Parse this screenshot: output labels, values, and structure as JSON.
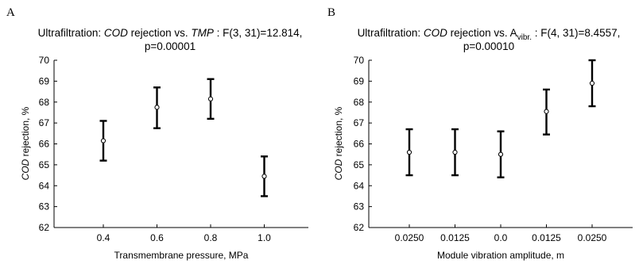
{
  "chart_data": [
    {
      "type": "scatter",
      "panel": "A",
      "title": {
        "prefix": "Ultrafiltration: ",
        "y_var": "COD",
        "middle": " rejection vs. ",
        "x_var": "TMP",
        "x_sub": "",
        "suffix": " : F(3, 31)=12.814,",
        "line2": "p=0.00001"
      },
      "xlabel": "Transmembrane pressure, MPa",
      "ylabel_var": "COD",
      "ylabel_rest": " rejection, %",
      "categories": [
        "0.4",
        "0.6",
        "0.8",
        "1.0"
      ],
      "ylim": [
        62,
        70
      ],
      "yticks": [
        "62",
        "63",
        "64",
        "65",
        "66",
        "67",
        "68",
        "69",
        "70"
      ],
      "grid": false,
      "series": [
        {
          "values": [
            66.15,
            67.75,
            68.15,
            64.45
          ],
          "lower": [
            65.2,
            66.75,
            67.2,
            63.5
          ],
          "upper": [
            67.1,
            68.7,
            69.1,
            65.4
          ]
        }
      ]
    },
    {
      "type": "scatter",
      "panel": "B",
      "title": {
        "prefix": "Ultrafiltration: ",
        "y_var": "COD",
        "middle": " rejection vs. A",
        "x_var": "",
        "x_sub": "vibr.",
        "suffix": " : F(4, 31)=8.4557,",
        "line2": "p=0.00010"
      },
      "xlabel": "Module vibration amplitude, m",
      "ylabel_var": "COD",
      "ylabel_rest": " rejection, %",
      "categories": [
        "0.0250",
        "0.0125",
        "0.0",
        "0.0125",
        "0.0250"
      ],
      "ylim": [
        62,
        70
      ],
      "yticks": [
        "62",
        "63",
        "64",
        "65",
        "66",
        "67",
        "68",
        "69",
        "70"
      ],
      "grid": false,
      "series": [
        {
          "values": [
            65.6,
            65.6,
            65.5,
            67.55,
            68.9
          ],
          "lower": [
            64.5,
            64.5,
            64.4,
            66.45,
            67.8
          ],
          "upper": [
            66.7,
            66.7,
            66.6,
            68.6,
            70.0
          ]
        }
      ]
    }
  ]
}
